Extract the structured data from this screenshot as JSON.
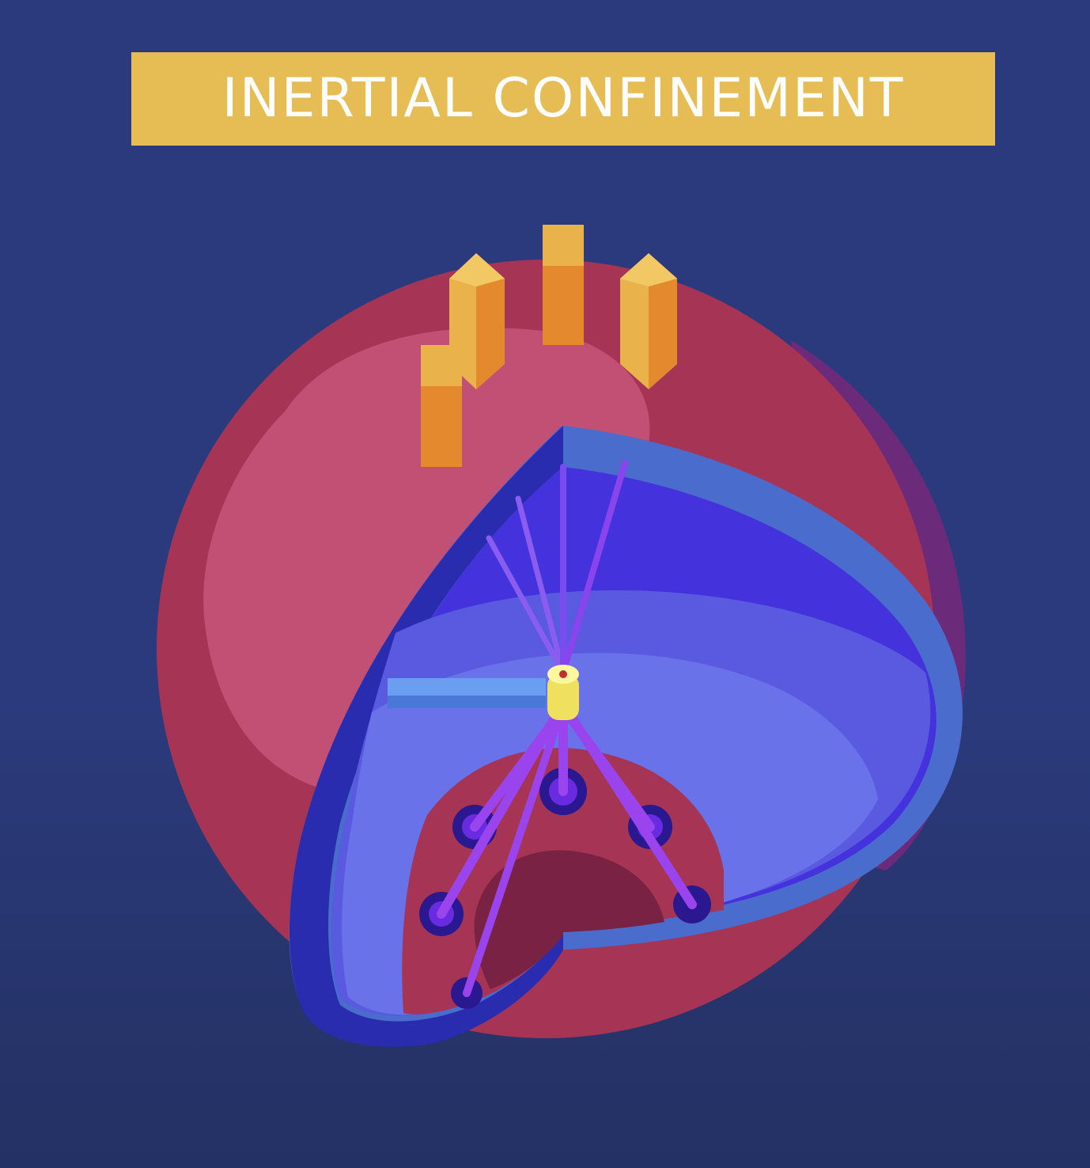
{
  "title": "INERTIAL CONFINEMENT",
  "colors": {
    "background": "#2b3a7c",
    "banner": "#e6bd55",
    "sphere_outer": "#a63455",
    "sphere_highlight": "#c24f74",
    "shell_inner": "#4433dd",
    "shell_rim": "#4a6ccc",
    "shell_mid": "#5a5ae0",
    "shell_light": "#6a72ea",
    "target": "#f0e060",
    "beam": "#9a44ee",
    "port": "#2a1890",
    "laser_tube_light": "#e9b24a",
    "laser_tube_dark": "#e4892e"
  },
  "icons": {
    "reactor": "spherical-target-chamber",
    "lasers": "laser-beamline",
    "target": "fuel-capsule"
  }
}
